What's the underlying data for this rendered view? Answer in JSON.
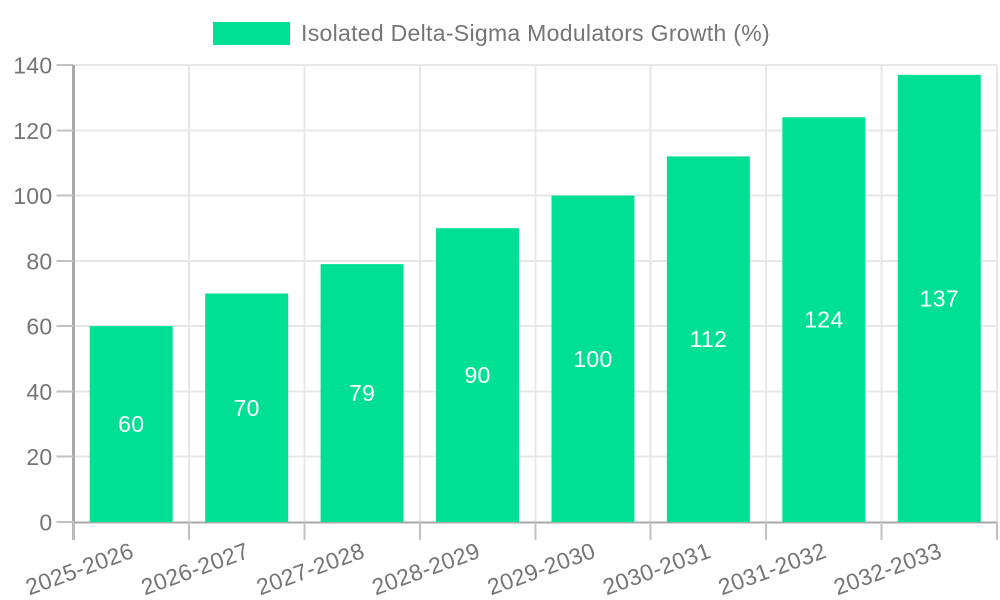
{
  "legend": {
    "label": "Isolated Delta-Sigma Modulators Growth (%)"
  },
  "chart_data": {
    "type": "bar",
    "title": "",
    "xlabel": "",
    "ylabel": "",
    "categories": [
      "2025-2026",
      "2026-2027",
      "2027-2028",
      "2028-2029",
      "2029-2030",
      "2030-2031",
      "2031-2032",
      "2032-2033"
    ],
    "series": [
      {
        "name": "Isolated Delta-Sigma Modulators Growth (%)",
        "values": [
          60,
          70,
          79,
          90,
          100,
          112,
          124,
          137
        ]
      }
    ],
    "value_labels_shown": true,
    "ylim": [
      0,
      140
    ],
    "yticks": [
      0,
      20,
      40,
      60,
      80,
      100,
      120,
      140
    ],
    "grid": "both",
    "legend_position": "top-center",
    "x_label_rotation_deg": -20,
    "colors": {
      "bar": "#00E095",
      "value_label": "#FFFFFF",
      "axis_line": "#A9A9A9",
      "tick": "#C2C2C2",
      "gridline": "#E7E7E7",
      "axis_text": "#757575",
      "legend_text": "#757575",
      "background": "#FFFFFF"
    }
  }
}
